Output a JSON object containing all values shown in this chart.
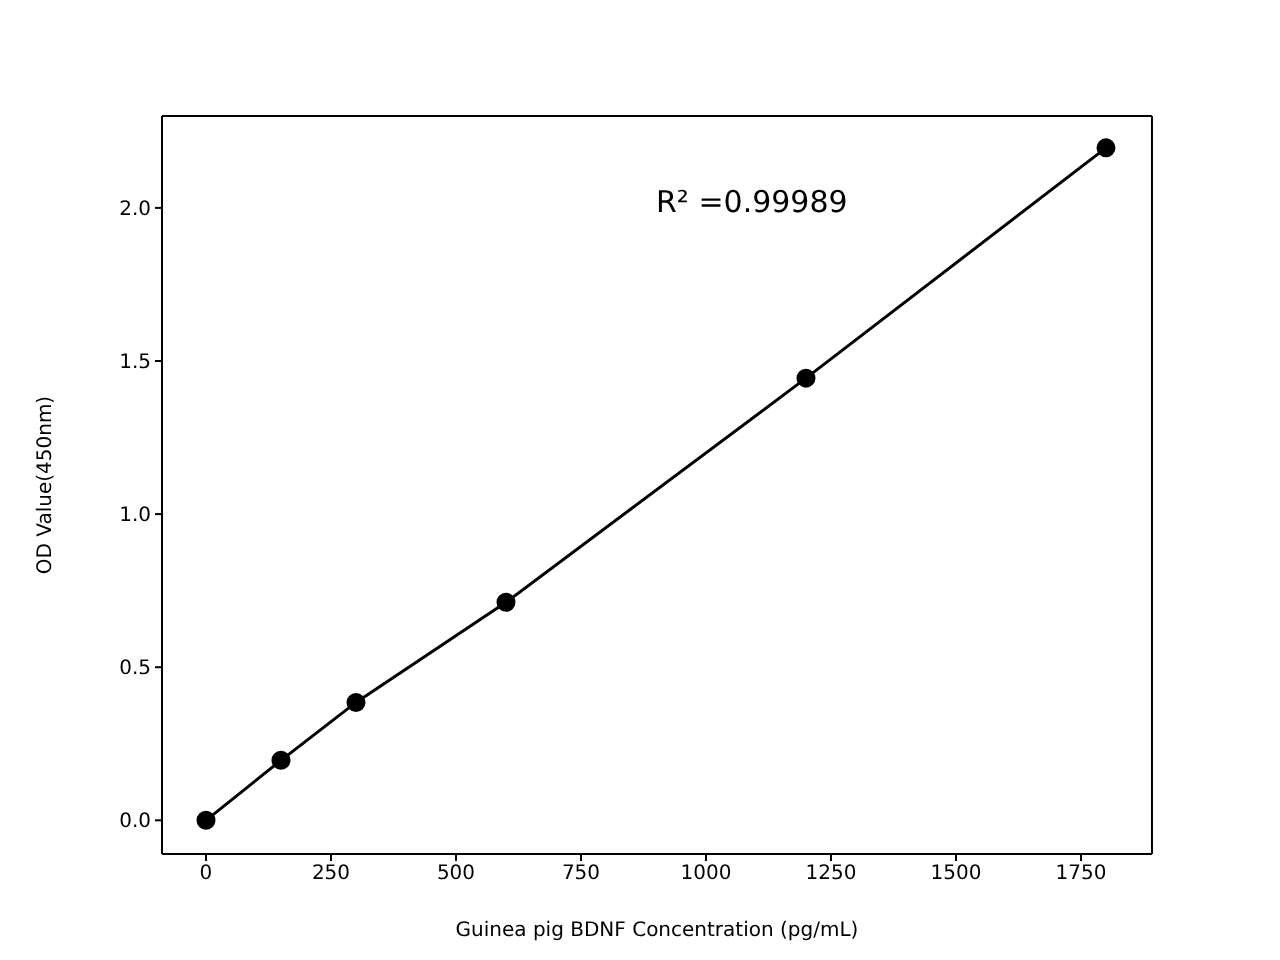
{
  "chart_data": {
    "type": "line",
    "xlabel": "Guinea pig BDNF Concentration (pg/mL)",
    "ylabel": "OD Value(450nm)",
    "annotations": [
      "R² =0.99989"
    ],
    "x": [
      0,
      150,
      300,
      600,
      1200,
      1800
    ],
    "series": [
      {
        "color": "#000000",
        "values": [
          0,
          0.196,
          0.385,
          0.712,
          1.444,
          2.196
        ]
      }
    ],
    "xlim": [
      -88,
      1892
    ],
    "ylim": [
      -0.11,
      2.3
    ],
    "xticks": [
      0,
      250,
      500,
      750,
      1000,
      1250,
      1500,
      1750
    ],
    "yticks": [
      {
        "value": 0,
        "label": "0.0"
      },
      {
        "value": 0.5,
        "label": "0.5"
      },
      {
        "value": 1,
        "label": "1.0"
      },
      {
        "value": 1.5,
        "label": "1.5"
      },
      {
        "value": 2,
        "label": "2.0"
      }
    ],
    "marker": "circle",
    "line_style": "solid"
  }
}
